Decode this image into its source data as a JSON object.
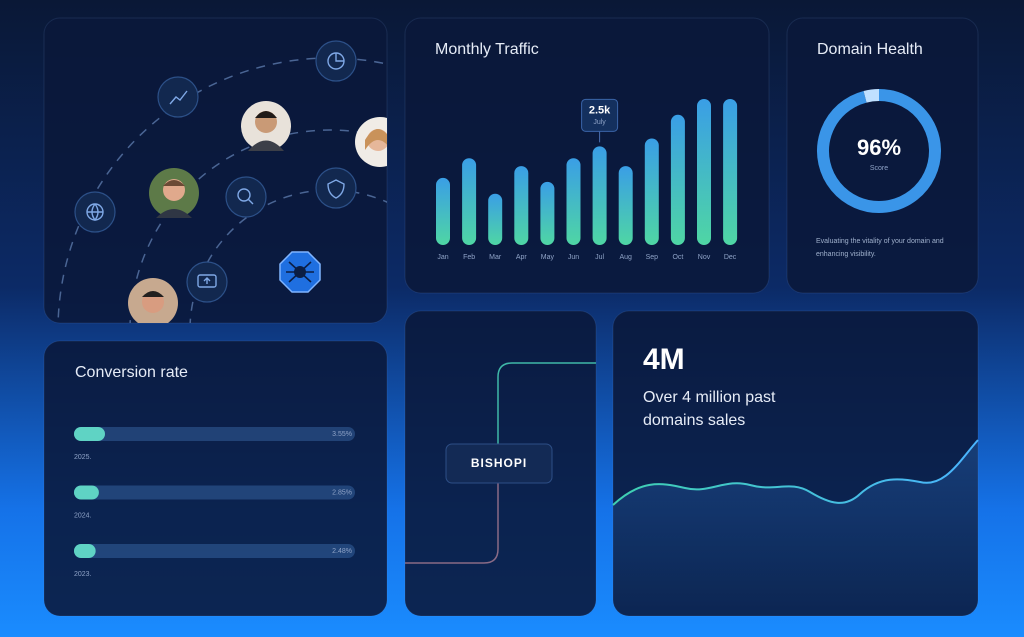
{
  "chart_data": [
    {
      "type": "bar",
      "title": "Monthly Traffic",
      "categories": [
        "Jan",
        "Feb",
        "Mar",
        "Apr",
        "May",
        "Jun",
        "Jul",
        "Aug",
        "Sep",
        "Oct",
        "Nov",
        "Dec"
      ],
      "values": [
        1.7,
        2.2,
        1.3,
        2.0,
        1.6,
        2.2,
        2.5,
        2.0,
        2.7,
        3.3,
        3.7,
        3.7
      ],
      "value_labels": [
        null,
        null,
        null,
        null,
        null,
        null,
        "2.5k",
        null,
        null,
        null,
        null,
        null
      ],
      "value_sublabels": [
        null,
        null,
        null,
        null,
        null,
        null,
        "July",
        null,
        null,
        null,
        null,
        null
      ],
      "gradient": [
        "#3a9ee6",
        "#4fd6a4"
      ]
    },
    {
      "type": "pie",
      "title": "Domain Health",
      "categories": [
        "Score",
        null
      ],
      "values": [
        96,
        4
      ],
      "value_labels": [
        "96%",
        null
      ],
      "colors": [
        "#3a95e8",
        "#bfe0ff"
      ],
      "description": "Evaluating the vitality of your domain and enhancing visibility."
    },
    {
      "type": "bar",
      "orientation": "horizontal",
      "title": "Conversion rate",
      "categories": [
        "2025.",
        "2024.",
        "2023."
      ],
      "values": [
        3.55,
        2.85,
        2.48
      ],
      "value_labels": [
        "3.55%",
        "2.85%",
        "2.48%"
      ],
      "color": "#5fd3c4"
    }
  ],
  "stat": {
    "value": "4M",
    "text": "Over 4 million past domains sales"
  },
  "logo": "BISHOPI"
}
